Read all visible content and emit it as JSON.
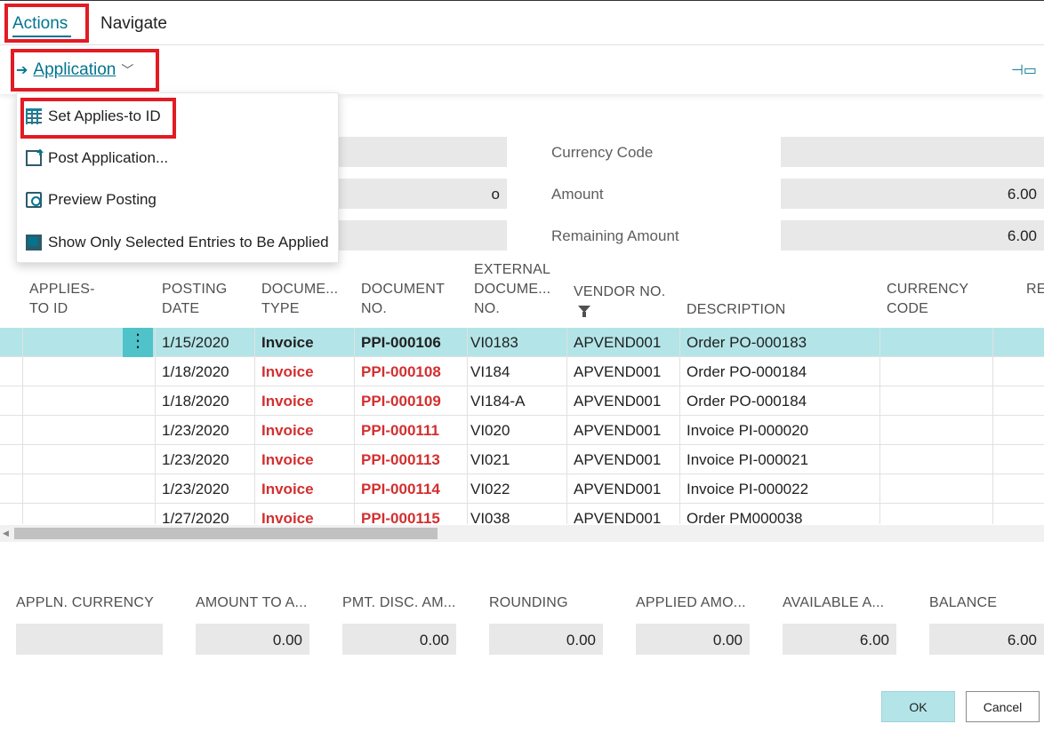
{
  "tabs": {
    "actions": "Actions",
    "navigate": "Navigate"
  },
  "actionbar": {
    "application": "Application",
    "pin_icon": "pin-icon"
  },
  "menu": {
    "items": [
      {
        "label": "Set Applies-to ID",
        "icon": "set-applies-id-icon"
      },
      {
        "label": "Post Application...",
        "icon": "post-application-icon"
      },
      {
        "label": "Preview Posting",
        "icon": "preview-posting-icon"
      },
      {
        "label": "Show Only Selected Entries to Be Applied",
        "icon": "show-selected-icon"
      }
    ]
  },
  "header": {
    "left_partial_values": [
      "",
      "o",
      ""
    ],
    "currency_code_label": "Currency Code",
    "currency_code_value": "",
    "amount_label": "Amount",
    "amount_value": "6.00",
    "remaining_amount_label": "Remaining Amount",
    "remaining_amount_value": "6.00"
  },
  "table": {
    "columns": {
      "applies_to_id": [
        "APPLIES-",
        "TO ID"
      ],
      "posting_date": [
        "POSTING",
        "DATE"
      ],
      "document_type": [
        "DOCUME...",
        "TYPE"
      ],
      "document_no": [
        "DOCUMENT",
        "NO."
      ],
      "external_document_no": [
        "EXTERNAL",
        "DOCUME...",
        "NO."
      ],
      "vendor_no": "VENDOR NO.",
      "description": "DESCRIPTION",
      "currency_code": [
        "CURRENCY",
        "CODE"
      ],
      "remaining": "RE"
    },
    "rows": [
      {
        "posting_date": "1/15/2020",
        "document_type": "Invoice",
        "document_no": "PPI-000106",
        "external_no": "VI0183",
        "vendor_no": "APVEND001",
        "description": "Order PO-000183"
      },
      {
        "posting_date": "1/18/2020",
        "document_type": "Invoice",
        "document_no": "PPI-000108",
        "external_no": "VI184",
        "vendor_no": "APVEND001",
        "description": "Order PO-000184"
      },
      {
        "posting_date": "1/18/2020",
        "document_type": "Invoice",
        "document_no": "PPI-000109",
        "external_no": "VI184-A",
        "vendor_no": "APVEND001",
        "description": "Order PO-000184"
      },
      {
        "posting_date": "1/23/2020",
        "document_type": "Invoice",
        "document_no": "PPI-000111",
        "external_no": "VI020",
        "vendor_no": "APVEND001",
        "description": "Invoice PI-000020"
      },
      {
        "posting_date": "1/23/2020",
        "document_type": "Invoice",
        "document_no": "PPI-000113",
        "external_no": "VI021",
        "vendor_no": "APVEND001",
        "description": "Invoice PI-000021"
      },
      {
        "posting_date": "1/23/2020",
        "document_type": "Invoice",
        "document_no": "PPI-000114",
        "external_no": "VI022",
        "vendor_no": "APVEND001",
        "description": "Invoice PI-000022"
      },
      {
        "posting_date": "1/27/2020",
        "document_type": "Invoice",
        "document_no": "PPI-000115",
        "external_no": "VI038",
        "vendor_no": "APVEND001",
        "description": "Order PM000038"
      }
    ],
    "row_menu": "⋮"
  },
  "footer": {
    "appln_currency_label": "APPLN. CURRENCY",
    "appln_currency_value": "",
    "amount_to_apply_label": "AMOUNT TO A...",
    "amount_to_apply_value": "0.00",
    "pmt_disc_label": "PMT. DISC. AM...",
    "pmt_disc_value": "0.00",
    "rounding_label": "ROUNDING",
    "rounding_value": "0.00",
    "applied_amount_label": "APPLIED AMO...",
    "applied_amount_value": "0.00",
    "available_amount_label": "AVAILABLE A...",
    "available_amount_value": "6.00",
    "balance_label": "BALANCE",
    "balance_value": "6.00"
  },
  "buttons": {
    "ok": "OK",
    "cancel": "Cancel"
  },
  "colors": {
    "accent": "#00758f",
    "selection": "#b3e5e8",
    "highlight_red": "#e31b23",
    "invoice_red": "#d32f2f"
  }
}
